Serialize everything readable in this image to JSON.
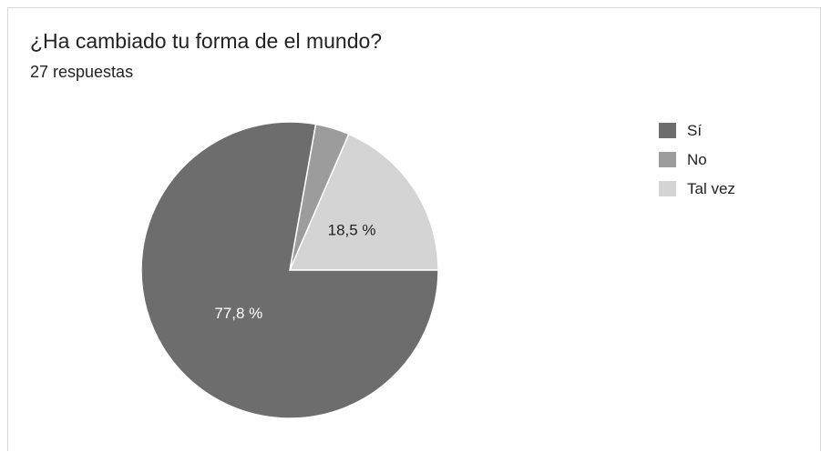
{
  "header": {
    "title": "¿Ha cambiado tu forma de el mundo?",
    "subtitle": "27 respuestas"
  },
  "chart_data": {
    "type": "pie",
    "categories": [
      "Sí",
      "No",
      "Tal vez"
    ],
    "values": [
      77.8,
      3.7,
      18.5
    ],
    "slice_labels": [
      "77,8 %",
      "",
      "18,5 %"
    ],
    "colors": [
      "#6d6d6d",
      "#9c9c9c",
      "#d4d4d4"
    ],
    "label_colors": [
      "#ffffff",
      "#ffffff",
      "#222222"
    ],
    "legend_position": "right"
  }
}
